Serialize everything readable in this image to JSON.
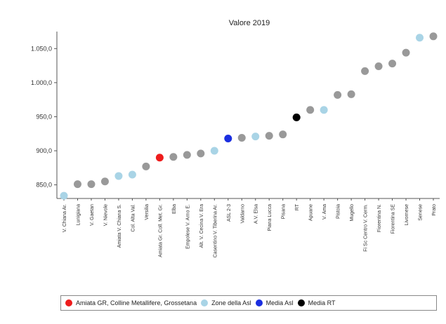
{
  "chart_data": {
    "type": "scatter",
    "title": "Valore 2019",
    "xlabel": "",
    "ylabel": "",
    "ylim": [
      830,
      1075
    ],
    "yticks": [
      850,
      900,
      950,
      1000,
      1050
    ],
    "ytick_labels": [
      "850,0",
      "900,0",
      "950,0",
      "1.000,0",
      "1.050,0"
    ],
    "grid": false,
    "legend_position": "bottom",
    "points": [
      {
        "label": "V. Chiana Ar.",
        "value": 834,
        "group": "zone"
      },
      {
        "label": "Lunigiana",
        "value": 851,
        "group": "other"
      },
      {
        "label": "V. Gaetan",
        "value": 851,
        "group": "other"
      },
      {
        "label": "V. Nievole",
        "value": 855,
        "group": "other"
      },
      {
        "label": "Amiata V. Chiana S.",
        "value": 863,
        "group": "zone"
      },
      {
        "label": "Col. Alta Val.",
        "value": 865,
        "group": "zone"
      },
      {
        "label": "Versilia",
        "value": 877,
        "group": "other"
      },
      {
        "label": "Amiata Gr. Coll. Met. Gr.",
        "value": 890,
        "group": "highlight"
      },
      {
        "label": "Elba",
        "value": 891,
        "group": "other"
      },
      {
        "label": "Empolese V. Arno E.",
        "value": 894,
        "group": "other"
      },
      {
        "label": "Alt. V. Cecina V. Era",
        "value": 896,
        "group": "other"
      },
      {
        "label": "Casentino V. Tiberina Ar.",
        "value": 900,
        "group": "zone"
      },
      {
        "label": "ASL 2-3",
        "value": 918,
        "group": "media_asl"
      },
      {
        "label": "Valdarno",
        "value": 919,
        "group": "other"
      },
      {
        "label": "A.V. Elsa",
        "value": 921,
        "group": "zone"
      },
      {
        "label": "Piana Lucca",
        "value": 922,
        "group": "other"
      },
      {
        "label": "Pisana",
        "value": 924,
        "group": "other"
      },
      {
        "label": "RT",
        "value": 949,
        "group": "media_rt"
      },
      {
        "label": "Apuane",
        "value": 960,
        "group": "other"
      },
      {
        "label": "V. Ama",
        "value": 960,
        "group": "zone"
      },
      {
        "label": "Pistoia",
        "value": 982,
        "group": "other"
      },
      {
        "label": "Mugello",
        "value": 983,
        "group": "other"
      },
      {
        "label": "Fi Sc Centro V. Cerm.",
        "value": 1017,
        "group": "other"
      },
      {
        "label": "Fiorentina N.",
        "value": 1024,
        "group": "other"
      },
      {
        "label": "Fiorentina SE",
        "value": 1028,
        "group": "other"
      },
      {
        "label": "Livornese",
        "value": 1044,
        "group": "other"
      },
      {
        "label": "Senese",
        "value": 1066,
        "group": "zone"
      },
      {
        "label": "Prato",
        "value": 1068,
        "group": "other"
      }
    ],
    "legend": [
      {
        "key": "highlight",
        "label": "Amiata GR, Colline Metallifere, Grossetana"
      },
      {
        "key": "zone",
        "label": "Zone della Asl"
      },
      {
        "key": "media_asl",
        "label": "Media Asl"
      },
      {
        "key": "media_rt",
        "label": "Media RT"
      }
    ],
    "colors": {
      "other": "#999999",
      "zone": "#a9d4e6",
      "highlight": "#ee1c1c",
      "media_asl": "#1a2ee0",
      "media_rt": "#000000",
      "axis": "#555555"
    }
  }
}
